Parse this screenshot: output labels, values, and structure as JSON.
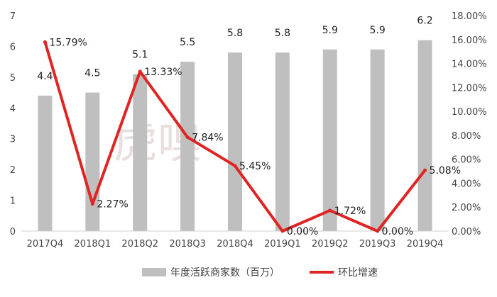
{
  "chart_data": {
    "type": "bar",
    "categories": [
      "2017Q4",
      "2018Q1",
      "2018Q2",
      "2018Q3",
      "2018Q4",
      "2019Q1",
      "2019Q2",
      "2019Q3",
      "2019Q4"
    ],
    "series": [
      {
        "name": "年度活跃商家数（百万）",
        "type": "bar",
        "axis": "left",
        "color": "#bfbfbf",
        "values": [
          4.4,
          4.5,
          5.1,
          5.5,
          5.8,
          5.8,
          5.9,
          5.9,
          6.2
        ],
        "labels": [
          "4.4",
          "4.5",
          "5.1",
          "5.5",
          "5.8",
          "5.8",
          "5.9",
          "5.9",
          "6.2"
        ]
      },
      {
        "name": "环比增速",
        "type": "line",
        "axis": "right",
        "color": "#e02424",
        "values": [
          15.79,
          2.27,
          13.33,
          7.84,
          5.45,
          0.0,
          1.72,
          0.0,
          5.08
        ],
        "labels": [
          "15.79%",
          "2.27%",
          "13.33%",
          "7.84%",
          "5.45%",
          "0.00%",
          "1.72%",
          "0.00%",
          "5.08%"
        ]
      }
    ],
    "y_left": {
      "min": 0,
      "max": 7,
      "ticks": [
        "0",
        "1",
        "2",
        "3",
        "4",
        "5",
        "6",
        "7"
      ]
    },
    "y_right": {
      "min": 0,
      "max": 18,
      "ticks": [
        "0.00%",
        "2.00%",
        "4.00%",
        "6.00%",
        "8.00%",
        "10.00%",
        "12.00%",
        "14.00%",
        "16.00%",
        "18.00%"
      ]
    },
    "grid": false,
    "legend": "bottom",
    "watermark": "虎嗅"
  }
}
